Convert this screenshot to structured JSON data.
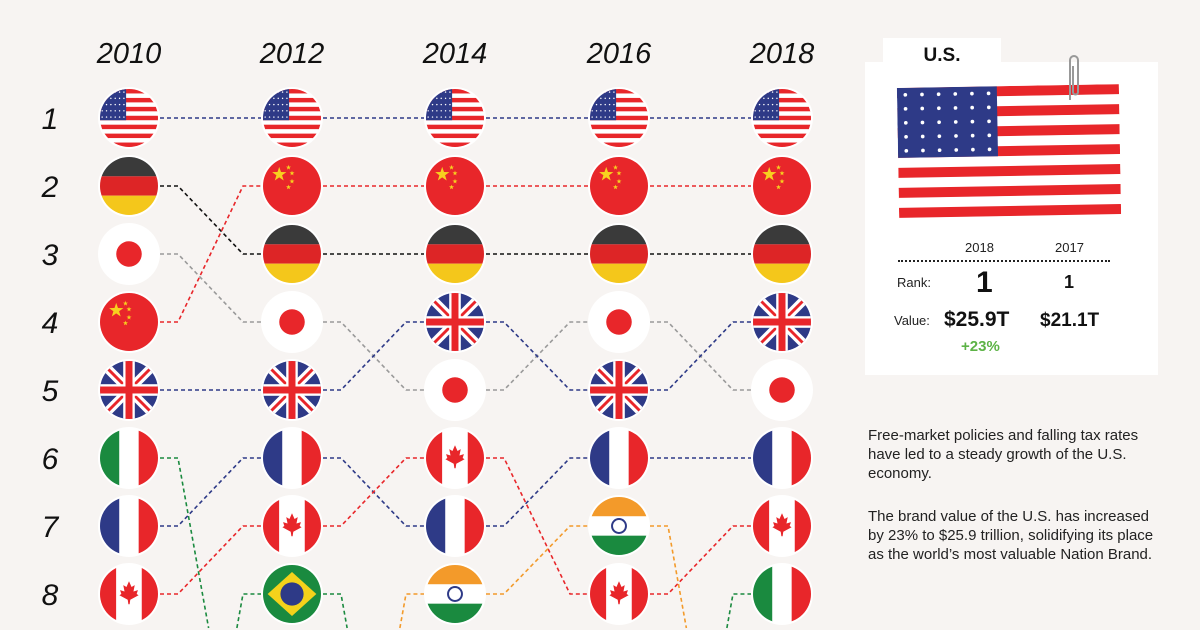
{
  "chart_data": {
    "type": "bump",
    "years": [
      "2010",
      "2012",
      "2014",
      "2016",
      "2018"
    ],
    "rank_labels": [
      "1",
      "2",
      "3",
      "4",
      "5",
      "6",
      "7",
      "8"
    ],
    "series": [
      {
        "flag": "us-flag",
        "color": "#2e3a87",
        "ranks": [
          1,
          1,
          1,
          1,
          1
        ]
      },
      {
        "flag": "germany-flag",
        "color": "#111111",
        "ranks": [
          2,
          3,
          3,
          3,
          3
        ]
      },
      {
        "flag": "japan-flag",
        "color": "#9a9a9a",
        "ranks": [
          3,
          4,
          5,
          4,
          5
        ]
      },
      {
        "flag": "china-flag",
        "color": "#e8262a",
        "ranks": [
          4,
          2,
          2,
          2,
          2
        ]
      },
      {
        "flag": "uk-flag",
        "color": "#2e3a87",
        "ranks": [
          5,
          5,
          4,
          5,
          4
        ]
      },
      {
        "flag": "italy-flag",
        "color": "#1a8a3f",
        "ranks": [
          6,
          null,
          null,
          null,
          8
        ]
      },
      {
        "flag": "france-flag",
        "color": "#2e3a87",
        "ranks": [
          7,
          6,
          7,
          6,
          6
        ]
      },
      {
        "flag": "canada-flag",
        "color": "#e8262a",
        "ranks": [
          8,
          7,
          6,
          8,
          7
        ]
      },
      {
        "flag": "brazil-flag",
        "color": "#1a8a3f",
        "ranks": [
          null,
          8,
          null,
          null,
          null
        ]
      },
      {
        "flag": "india-flag",
        "color": "#f39a2a",
        "ranks": [
          null,
          null,
          8,
          7,
          null
        ]
      }
    ]
  },
  "panel": {
    "tab_label": "U.S.",
    "flag": "us-flag",
    "col_2018": "2018",
    "col_2017": "2017",
    "rank_label": "Rank:",
    "rank_2018": "1",
    "rank_2017": "1",
    "value_label": "Value:",
    "value_2018": "$25.9T",
    "value_2017": "$21.1T",
    "change": "+23%",
    "change_color": "#5db346"
  },
  "description": [
    "Free-market policies and falling tax rates have led to a steady growth of the U.S. economy.",
    "The brand value of the U.S. has increased by 23% to $25.9 trillion, solidifying its place as the world’s most valuable Nation Brand."
  ]
}
